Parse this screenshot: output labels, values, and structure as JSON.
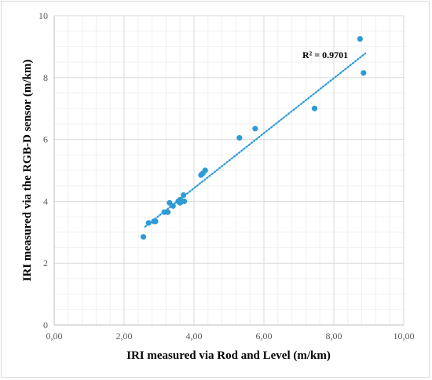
{
  "chart_data": {
    "type": "scatter",
    "xlabel": "IRI measured via Rod and Level (m/km)",
    "ylabel": "IRI measured via the RGB-D sensor  (m/km)",
    "xlim": [
      0,
      10
    ],
    "ylim": [
      0,
      10
    ],
    "x_ticks": [
      "0,00",
      "2,00",
      "4,00",
      "6,00",
      "8,00",
      "10,00"
    ],
    "y_ticks": [
      "0",
      "2",
      "4",
      "6",
      "8",
      "10"
    ],
    "grid": true,
    "minor_grid": true,
    "legend": "none",
    "annotation": "R² = 0.9701",
    "marker_color": "#2e9bd6",
    "trendline": {
      "style": "dotted",
      "x": [
        2.6,
        8.9
      ],
      "y": [
        3.18,
        8.78
      ]
    },
    "series": [
      {
        "x": [
          2.55,
          2.7,
          2.85,
          2.9,
          3.15,
          3.25,
          3.3,
          3.4,
          3.55,
          3.6,
          3.6,
          3.65,
          3.7,
          3.72,
          4.2,
          4.25,
          4.32,
          5.3,
          5.75,
          7.45,
          8.75,
          8.85
        ],
        "y": [
          2.85,
          3.3,
          3.35,
          3.35,
          3.65,
          3.65,
          3.95,
          3.85,
          4.0,
          3.95,
          4.05,
          4.0,
          4.2,
          4.0,
          4.85,
          4.9,
          5.0,
          6.05,
          6.35,
          7.0,
          9.25,
          8.15
        ]
      }
    ]
  }
}
